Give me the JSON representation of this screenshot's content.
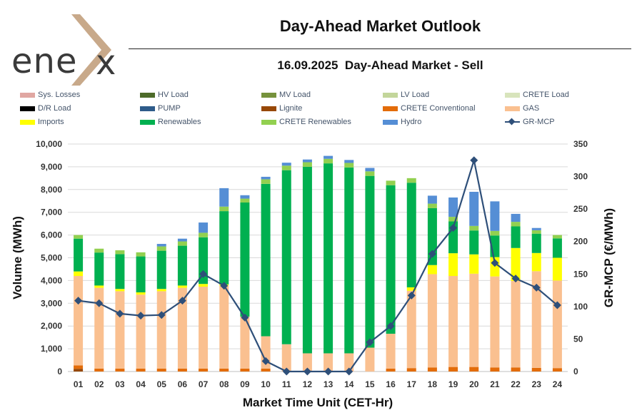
{
  "logo": {
    "text": "ene",
    "brand_color": "#c8a98a"
  },
  "header": {
    "title": "Day-Ahead Market Outlook",
    "subtitle": "16.09.2025  Day-Ahead Market - Sell"
  },
  "legend": [
    {
      "label": "Sys. Losses",
      "color": "#e0a7a2"
    },
    {
      "label": "HV Load",
      "color": "#4d6b2a"
    },
    {
      "label": "MV Load",
      "color": "#76923c"
    },
    {
      "label": "LV Load",
      "color": "#c3d69b"
    },
    {
      "label": "CRETE Load",
      "color": "#d8e4bc"
    },
    {
      "label": "D/R Load",
      "color": "#000000"
    },
    {
      "label": "PUMP",
      "color": "#2e5b8a"
    },
    {
      "label": "Lignite",
      "color": "#974806"
    },
    {
      "label": "CRETE Conventional",
      "color": "#e36c09"
    },
    {
      "label": "GAS",
      "color": "#fac090"
    },
    {
      "label": "Imports",
      "color": "#ffff00"
    },
    {
      "label": "Renewables",
      "color": "#00b050"
    },
    {
      "label": "CRETE Renewables",
      "color": "#92d050"
    },
    {
      "label": "Hydro",
      "color": "#558ed5"
    },
    {
      "label": "GR-MCP",
      "color": "#2e4f79",
      "kind": "line"
    }
  ],
  "chart_data": {
    "type": "bar",
    "stacked": true,
    "xlabel": "Market Time Unit (CET-Hr)",
    "ylabel": "Volume (MWh)",
    "y2label": "GR-MCP (€/MWh)",
    "ylim": [
      0,
      10000
    ],
    "y2lim": [
      0,
      350
    ],
    "yticks": [
      "0",
      "1,000",
      "2,000",
      "3,000",
      "4,000",
      "5,000",
      "6,000",
      "7,000",
      "8,000",
      "9,000",
      "10,000"
    ],
    "y2ticks": [
      "0",
      "50",
      "100",
      "150",
      "200",
      "250",
      "300",
      "350"
    ],
    "categories": [
      "01",
      "02",
      "03",
      "04",
      "05",
      "06",
      "07",
      "08",
      "09",
      "10",
      "11",
      "12",
      "13",
      "14",
      "15",
      "16",
      "17",
      "18",
      "19",
      "20",
      "21",
      "22",
      "23",
      "24"
    ],
    "series": [
      {
        "name": "Lignite",
        "color": "#974806",
        "values": [
          120,
          0,
          0,
          0,
          0,
          0,
          0,
          0,
          0,
          0,
          0,
          0,
          0,
          0,
          0,
          0,
          0,
          0,
          0,
          0,
          0,
          0,
          0,
          0
        ]
      },
      {
        "name": "CRETE Conventional",
        "color": "#e36c09",
        "values": [
          150,
          130,
          130,
          130,
          130,
          130,
          130,
          130,
          130,
          130,
          0,
          0,
          0,
          0,
          0,
          130,
          150,
          180,
          200,
          200,
          180,
          180,
          160,
          150
        ]
      },
      {
        "name": "GAS",
        "color": "#fac090",
        "values": [
          3930,
          3550,
          3400,
          3250,
          3400,
          3550,
          3600,
          3650,
          2280,
          1420,
          1200,
          800,
          800,
          800,
          1050,
          1530,
          3400,
          4100,
          4000,
          4100,
          4000,
          3800,
          4250,
          3850
        ]
      },
      {
        "name": "Imports",
        "color": "#ffff00",
        "values": [
          200,
          100,
          100,
          100,
          100,
          100,
          120,
          50,
          0,
          0,
          0,
          0,
          0,
          0,
          0,
          0,
          150,
          400,
          1000,
          850,
          850,
          1450,
          800,
          1000
        ]
      },
      {
        "name": "Renewables",
        "color": "#00b050",
        "values": [
          1440,
          1450,
          1530,
          1580,
          1680,
          1750,
          2050,
          3220,
          5020,
          6700,
          7650,
          8200,
          8350,
          8170,
          7550,
          6530,
          4600,
          2500,
          1400,
          1050,
          950,
          950,
          850,
          850
        ]
      },
      {
        "name": "CRETE Renewables",
        "color": "#92d050",
        "values": [
          160,
          170,
          170,
          180,
          190,
          190,
          200,
          200,
          170,
          200,
          200,
          200,
          200,
          200,
          200,
          200,
          200,
          200,
          200,
          200,
          200,
          200,
          150,
          150
        ]
      },
      {
        "name": "Hydro",
        "color": "#558ed5",
        "values": [
          0,
          0,
          0,
          0,
          110,
          120,
          450,
          810,
          150,
          110,
          130,
          120,
          130,
          130,
          150,
          0,
          0,
          350,
          850,
          1500,
          1300,
          350,
          100,
          0
        ]
      }
    ],
    "line": {
      "name": "GR-MCP",
      "axis": "right",
      "color": "#2e4f79",
      "values": [
        109,
        105,
        89,
        86,
        87,
        109,
        150,
        132,
        83,
        16,
        0,
        0,
        0,
        0,
        45,
        70,
        117,
        181,
        221,
        325,
        167,
        143,
        129,
        102
      ]
    }
  }
}
